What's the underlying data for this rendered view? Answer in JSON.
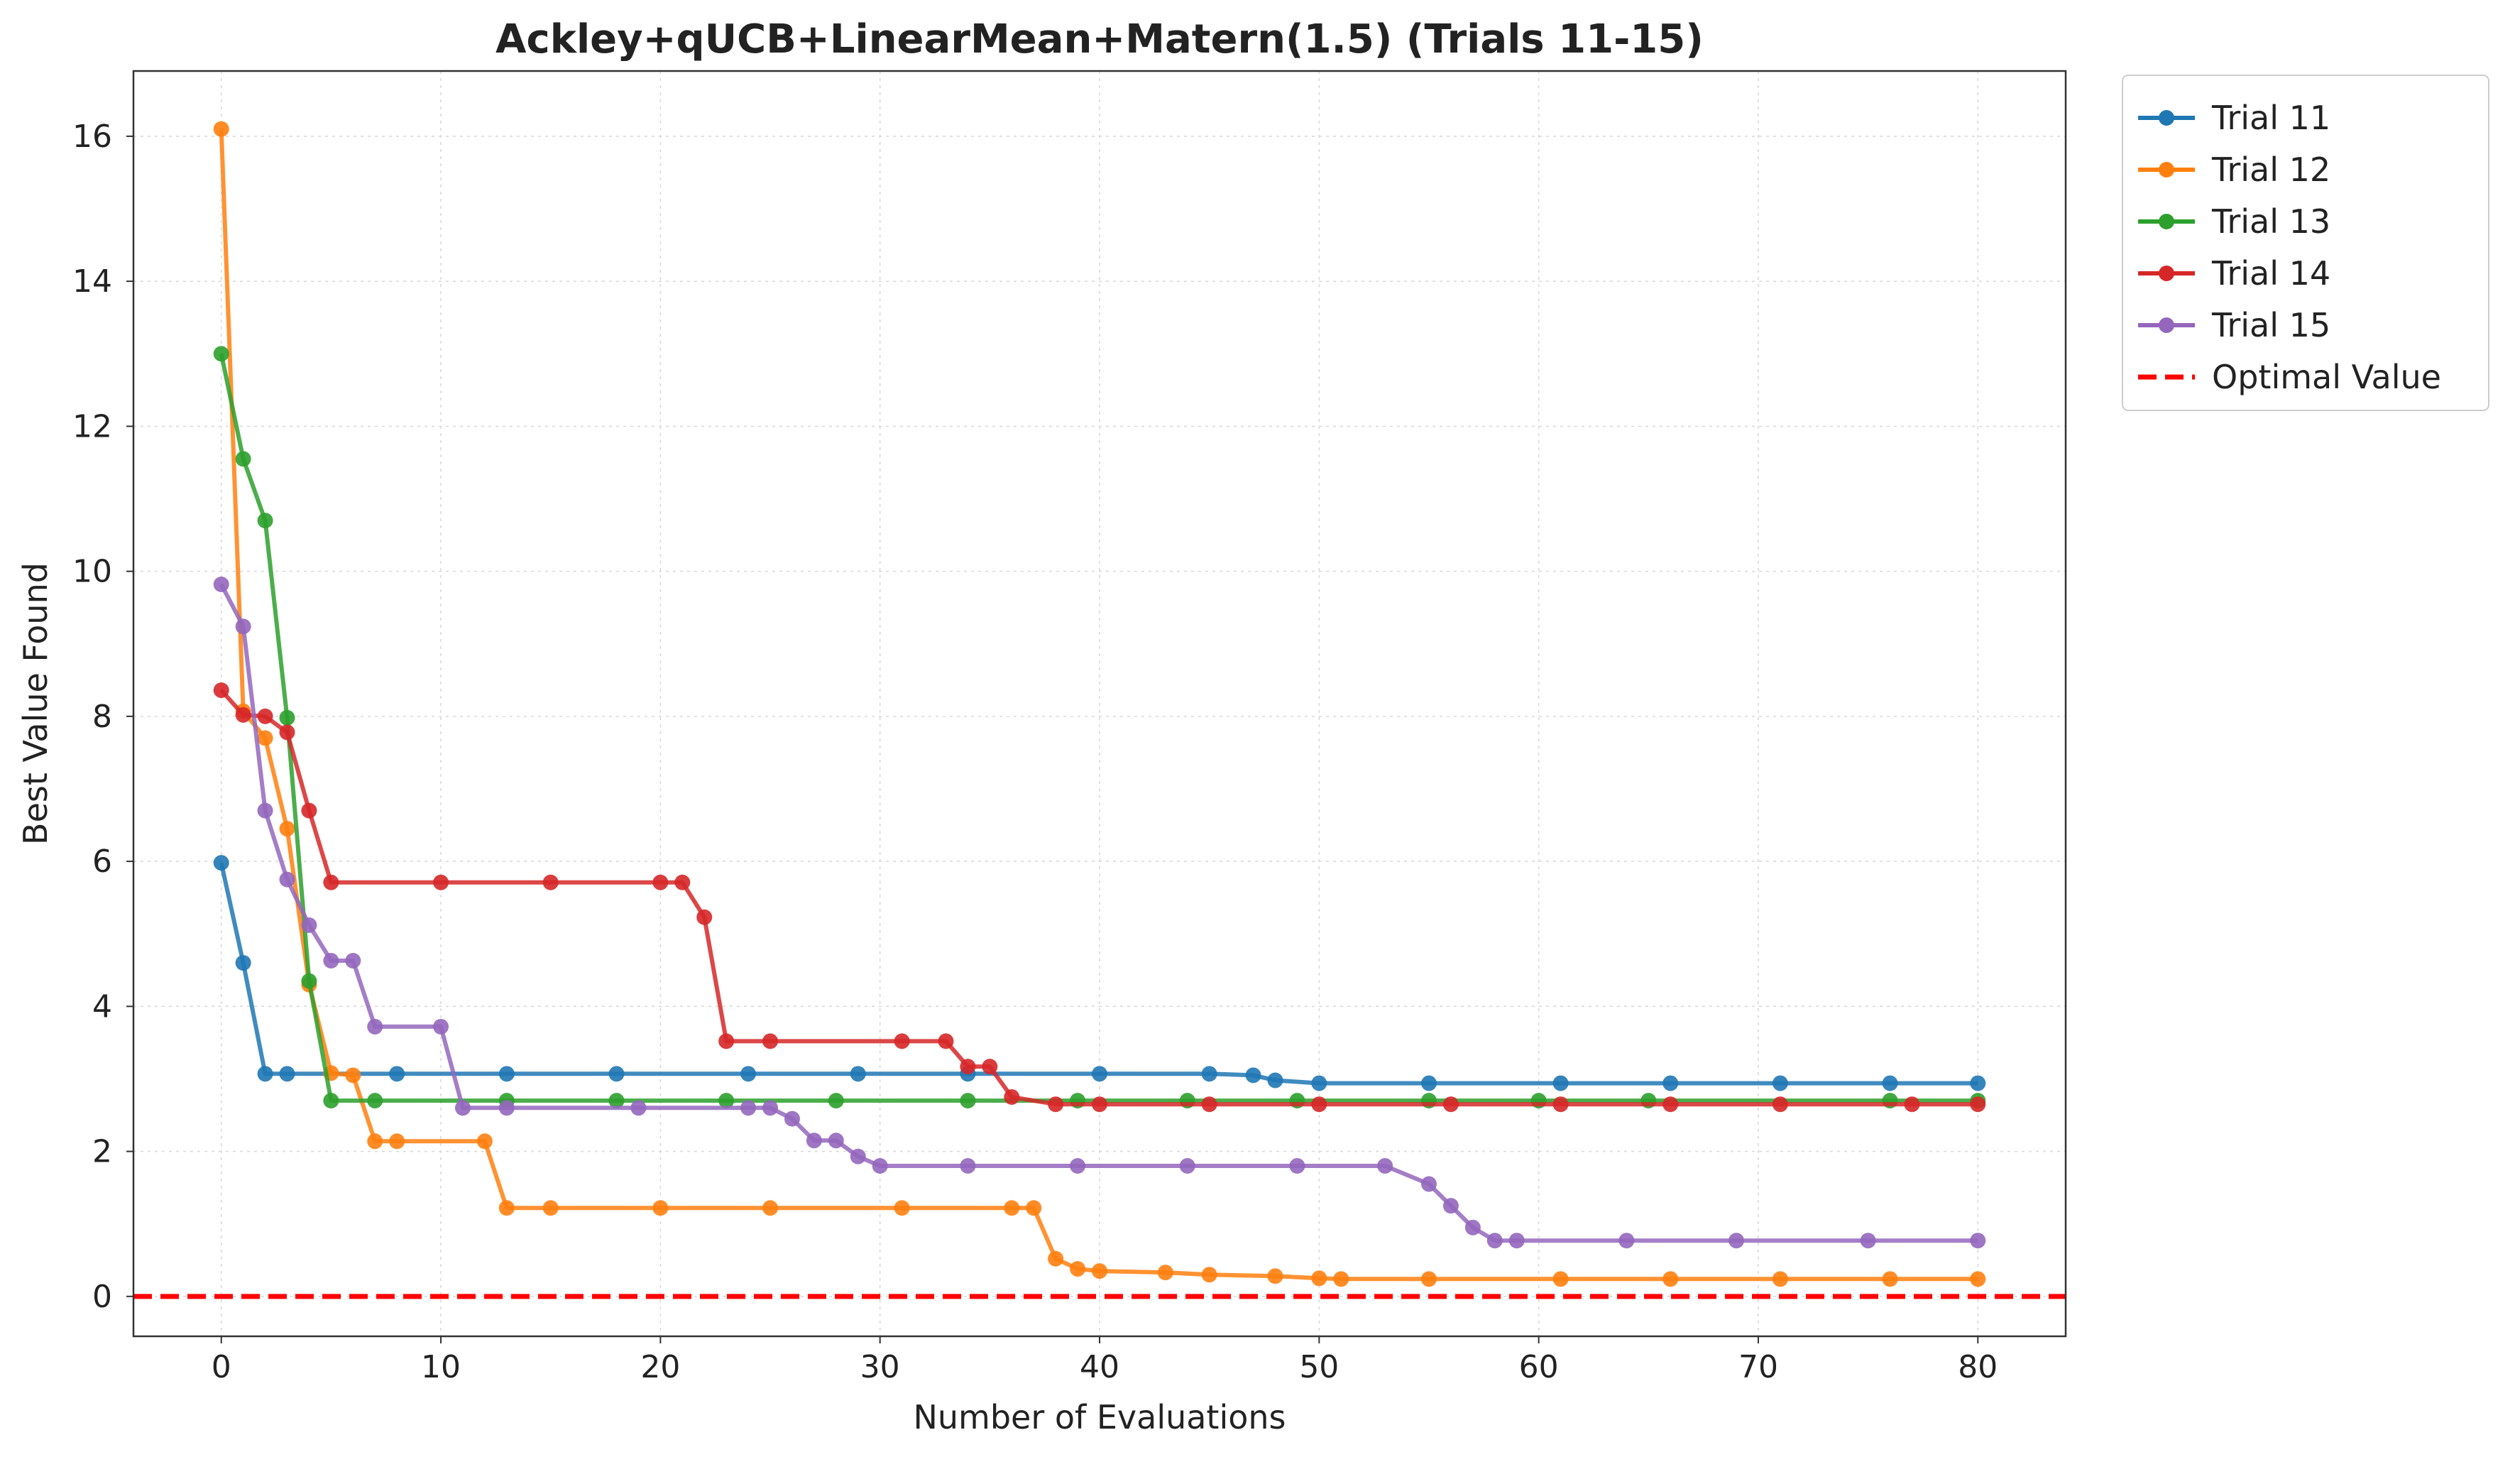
{
  "chart_data": {
    "type": "line",
    "title": "Ackley+qUCB+LinearMean+Matern(1.5) (Trials 11-15)",
    "xlabel": "Number of Evaluations",
    "ylabel": "Best Value Found",
    "xlim": [
      -4,
      84
    ],
    "ylim": [
      -0.55,
      16.9
    ],
    "xticks": [
      0,
      10,
      20,
      30,
      40,
      50,
      60,
      70,
      80
    ],
    "yticks": [
      0,
      2,
      4,
      6,
      8,
      10,
      12,
      14,
      16
    ],
    "xtick_labels": [
      "0",
      "10",
      "20",
      "30",
      "40",
      "50",
      "60",
      "70",
      "80"
    ],
    "ytick_labels": [
      "0",
      "2",
      "4",
      "6",
      "8",
      "10",
      "12",
      "14",
      "16"
    ],
    "grid": true,
    "legend_position": "outside-top-right",
    "series": [
      {
        "name": "Trial 11",
        "color": "#1f77b4",
        "marker_every": 5,
        "x": [
          0,
          1,
          2,
          3,
          8,
          13,
          18,
          24,
          29,
          34,
          40,
          45,
          47,
          48,
          50,
          55,
          61,
          66,
          71,
          76,
          80
        ],
        "y": [
          5.98,
          4.6,
          3.07,
          3.07,
          3.07,
          3.07,
          3.07,
          3.07,
          3.07,
          3.07,
          3.07,
          3.07,
          3.05,
          2.98,
          2.94,
          2.94,
          2.94,
          2.94,
          2.94,
          2.94,
          2.94
        ]
      },
      {
        "name": "Trial 12",
        "color": "#ff7f0e",
        "marker_every": 5,
        "x": [
          0,
          1,
          2,
          3,
          4,
          5,
          6,
          7,
          8,
          12,
          13,
          15,
          20,
          25,
          31,
          36,
          37,
          38,
          39,
          40,
          43,
          45,
          48,
          50,
          51,
          55,
          61,
          66,
          71,
          76,
          80
        ],
        "y": [
          16.1,
          8.07,
          7.7,
          6.45,
          4.3,
          3.08,
          3.05,
          2.14,
          2.14,
          2.14,
          1.22,
          1.22,
          1.22,
          1.22,
          1.22,
          1.22,
          1.22,
          0.52,
          0.38,
          0.35,
          0.33,
          0.3,
          0.28,
          0.25,
          0.24,
          0.24,
          0.24,
          0.24,
          0.24,
          0.24,
          0.24
        ]
      },
      {
        "name": "Trial 13",
        "color": "#2ca02c",
        "marker_every": 5,
        "x": [
          0,
          1,
          2,
          3,
          4,
          5,
          7,
          13,
          18,
          23,
          28,
          34,
          39,
          44,
          49,
          55,
          60,
          65,
          76,
          80
        ],
        "y": [
          13.0,
          11.55,
          10.7,
          7.98,
          4.35,
          2.7,
          2.7,
          2.7,
          2.7,
          2.7,
          2.7,
          2.7,
          2.7,
          2.7,
          2.7,
          2.7,
          2.7,
          2.7,
          2.7,
          2.7
        ]
      },
      {
        "name": "Trial 14",
        "color": "#d62728",
        "marker_every": 5,
        "x": [
          0,
          1,
          2,
          3,
          4,
          5,
          10,
          15,
          20,
          21,
          22,
          23,
          25,
          31,
          33,
          34,
          35,
          36,
          38,
          40,
          45,
          50,
          56,
          61,
          66,
          71,
          77,
          80
        ],
        "y": [
          8.36,
          8.02,
          8.0,
          7.78,
          6.7,
          5.71,
          5.71,
          5.71,
          5.71,
          5.71,
          5.23,
          3.52,
          3.52,
          3.52,
          3.52,
          3.17,
          3.17,
          2.75,
          2.65,
          2.65,
          2.65,
          2.65,
          2.65,
          2.65,
          2.65,
          2.65,
          2.65,
          2.65
        ]
      },
      {
        "name": "Trial 15",
        "color": "#9467bd",
        "marker_every": 5,
        "x": [
          0,
          1,
          2,
          3,
          4,
          5,
          6,
          7,
          10,
          11,
          13,
          19,
          24,
          25,
          26,
          27,
          28,
          29,
          30,
          34,
          39,
          44,
          49,
          53,
          55,
          56,
          57,
          58,
          59,
          64,
          69,
          75,
          80
        ],
        "y": [
          9.82,
          9.24,
          6.7,
          5.75,
          5.12,
          4.63,
          4.63,
          3.72,
          3.72,
          2.6,
          2.6,
          2.6,
          2.6,
          2.6,
          2.45,
          2.15,
          2.15,
          1.93,
          1.8,
          1.8,
          1.8,
          1.8,
          1.8,
          1.8,
          1.55,
          1.25,
          0.95,
          0.77,
          0.77,
          0.77,
          0.77,
          0.77,
          0.77
        ]
      }
    ],
    "reference_lines": [
      {
        "name": "Optimal Value",
        "y": 0,
        "color": "#ff0000",
        "style": "dashed"
      }
    ]
  }
}
